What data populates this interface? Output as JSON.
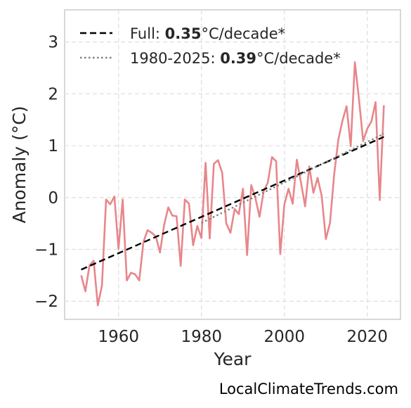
{
  "chart_data": {
    "type": "line",
    "xlabel": "Year",
    "ylabel": "Anomaly (°C)",
    "xlim": [
      1947,
      2028
    ],
    "ylim": [
      -2.35,
      3.62
    ],
    "xticks": [
      1960,
      1980,
      2000,
      2020
    ],
    "yticks": [
      -2,
      -1,
      0,
      1,
      2,
      3
    ],
    "ytick_labels": [
      "−2",
      "−1",
      "0",
      "1",
      "2",
      "3"
    ],
    "grid": true,
    "legend_position": "top-left",
    "legend": [
      {
        "prefix": "Full: ",
        "value": "0.35",
        "suffix": "°C/decade*",
        "style": "dashed",
        "color": "#000000"
      },
      {
        "prefix": "1980-2025: ",
        "value": "0.39",
        "suffix": "°C/decade*",
        "style": "dotted",
        "color": "#808080"
      }
    ],
    "series": [
      {
        "color": "#e8868a",
        "x": [
          1951,
          1952,
          1953,
          1954,
          1955,
          1956,
          1957,
          1958,
          1959,
          1960,
          1961,
          1962,
          1963,
          1964,
          1965,
          1966,
          1967,
          1968,
          1969,
          1970,
          1971,
          1972,
          1973,
          1974,
          1975,
          1976,
          1977,
          1978,
          1979,
          1980,
          1981,
          1982,
          1983,
          1984,
          1985,
          1986,
          1987,
          1988,
          1989,
          1990,
          1991,
          1992,
          1993,
          1994,
          1995,
          1996,
          1997,
          1998,
          1999,
          2000,
          2001,
          2002,
          2003,
          2004,
          2005,
          2006,
          2007,
          2008,
          2009,
          2010,
          2011,
          2012,
          2013,
          2014,
          2015,
          2016,
          2017,
          2018,
          2019,
          2020,
          2021,
          2022,
          2023,
          2024
        ],
        "y": [
          -1.5,
          -1.81,
          -1.31,
          -1.22,
          -2.08,
          -1.7,
          -0.04,
          -0.13,
          0.02,
          -0.99,
          -0.04,
          -1.6,
          -1.45,
          -1.48,
          -1.6,
          -0.86,
          -0.63,
          -0.68,
          -0.75,
          -1.06,
          -0.53,
          -0.19,
          -0.35,
          -0.36,
          -1.32,
          -0.04,
          -0.12,
          -0.92,
          -0.55,
          -0.78,
          0.67,
          -0.79,
          0.65,
          0.72,
          0.48,
          -0.5,
          -0.68,
          -0.22,
          -0.32,
          0.17,
          -1.11,
          0.24,
          -0.01,
          -0.37,
          0.12,
          0.29,
          0.78,
          0.7,
          -1.09,
          -0.13,
          0.17,
          -0.12,
          0.73,
          0.29,
          -0.17,
          0.6,
          0.09,
          0.38,
          0.03,
          -0.8,
          -0.49,
          0.44,
          1.11,
          1.48,
          1.76,
          0.99,
          2.61,
          1.89,
          1.09,
          1.33,
          1.47,
          1.84,
          -0.05,
          1.78
        ]
      }
    ],
    "trendlines": [
      {
        "style": "dashed",
        "color": "#000000",
        "x": [
          1951,
          2024
        ],
        "y": [
          -1.39,
          1.17
        ]
      },
      {
        "style": "dotted",
        "color": "#808080",
        "x": [
          1980,
          2024
        ],
        "y": [
          -0.49,
          1.23
        ]
      }
    ]
  },
  "credit": "LocalClimateTrends.com"
}
